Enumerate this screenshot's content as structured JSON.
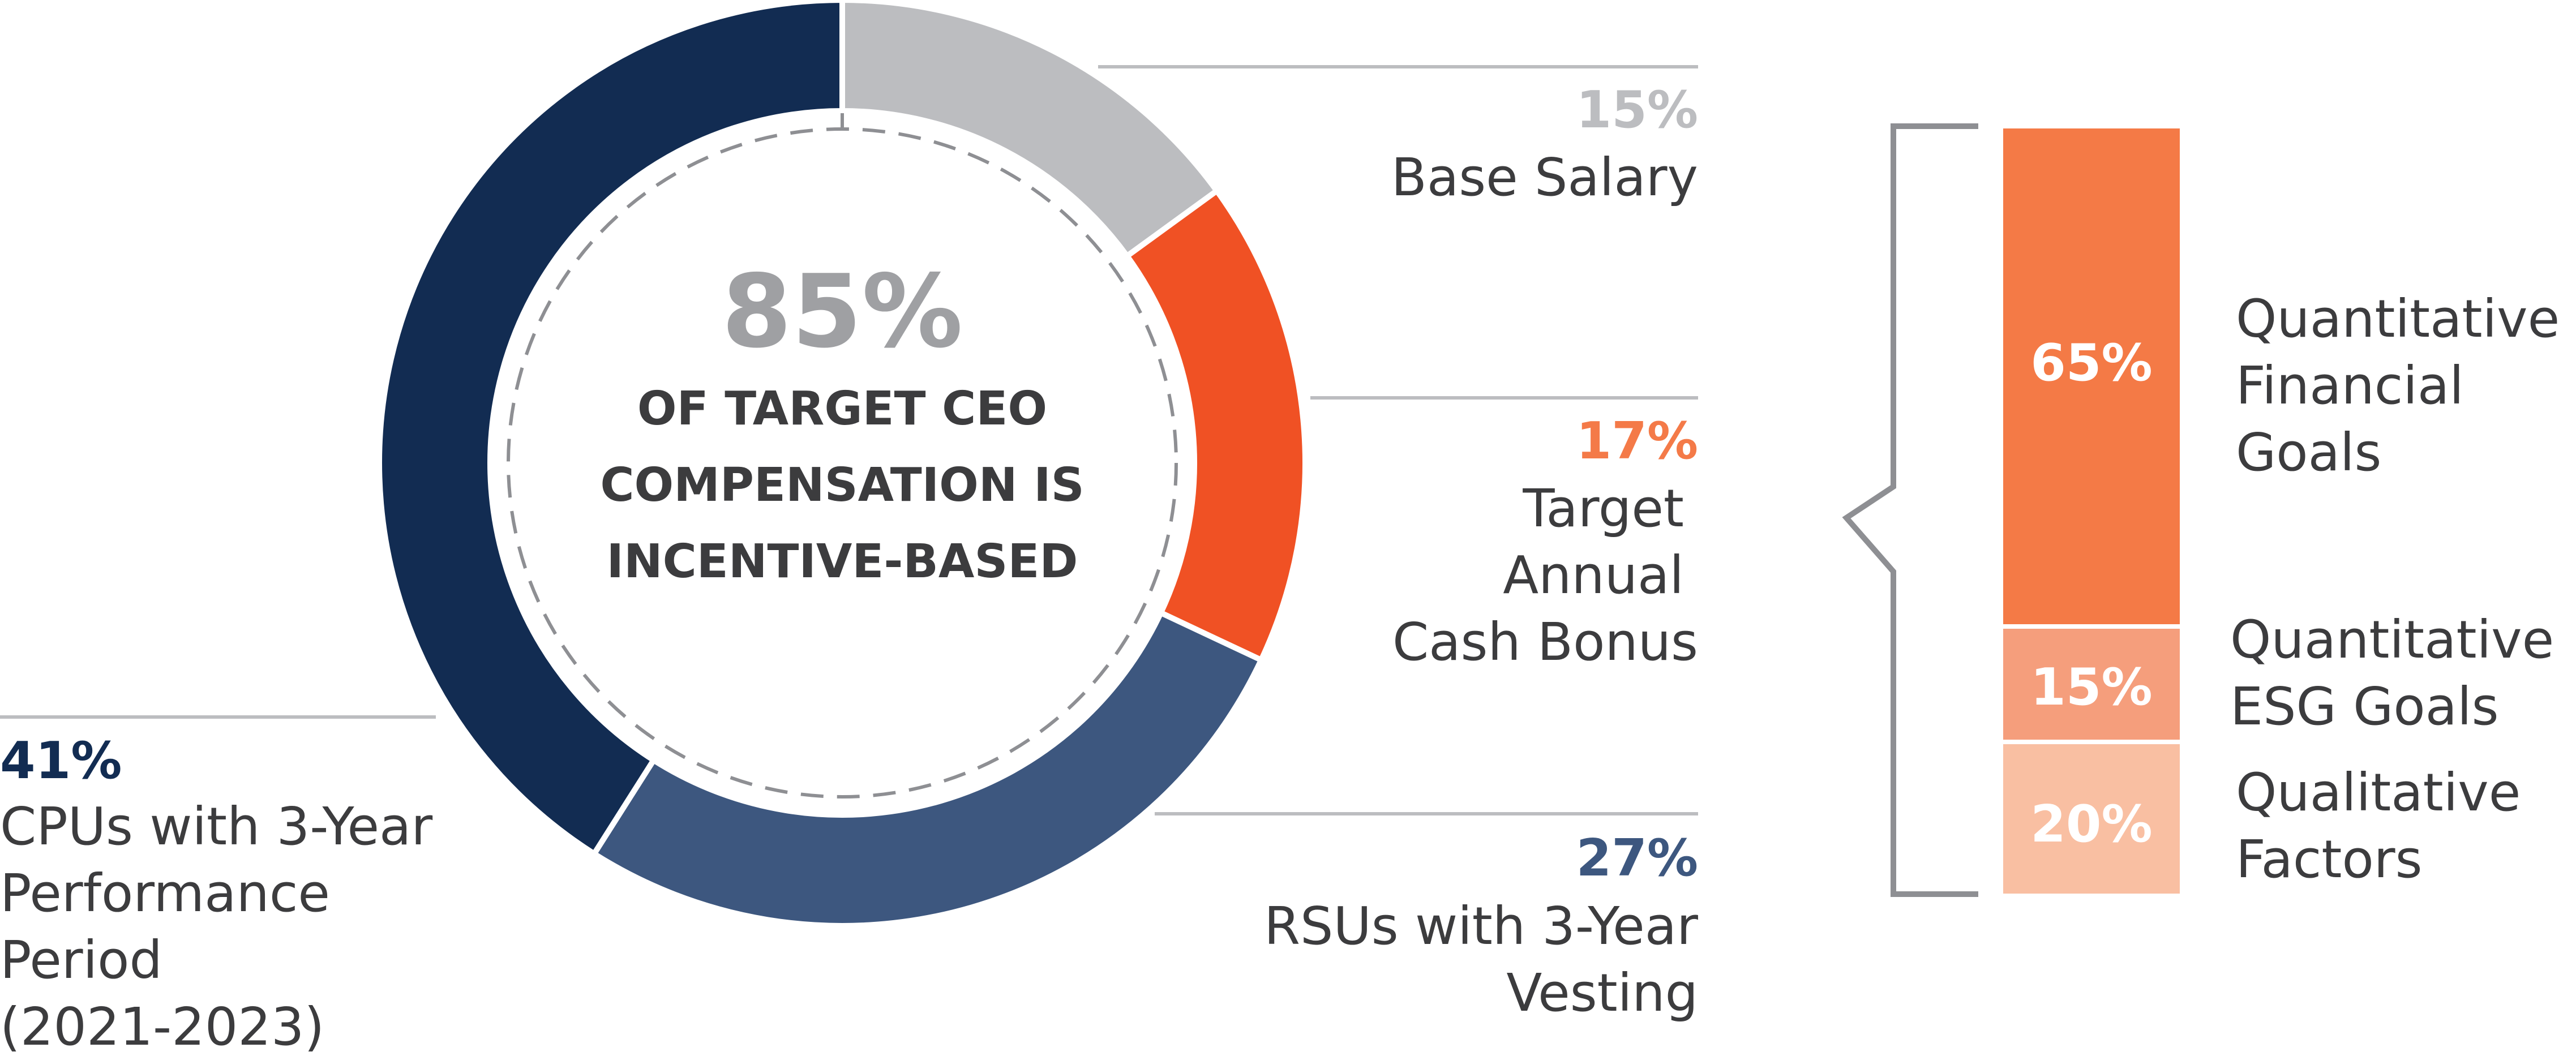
{
  "chart_data": [
    {
      "type": "pie",
      "center_value": "85%",
      "center_text": [
        "OF TARGET CEO",
        "COMPENSATION IS",
        "INCENTIVE-BASED"
      ],
      "slices": [
        {
          "key": "base-salary",
          "value": 15,
          "label": "15%",
          "name_lines": [
            "Base Salary"
          ],
          "color": "#bcbdc0"
        },
        {
          "key": "cash-bonus",
          "value": 17,
          "label": "17%",
          "name_lines": [
            "Target",
            "Annual",
            "Cash Bonus"
          ],
          "color": "#f05124",
          "label_color": "#f47a48"
        },
        {
          "key": "rsus",
          "value": 27,
          "label": "27%",
          "name_lines": [
            "RSUs with 3-Year",
            "Vesting"
          ],
          "color": "#3d577f"
        },
        {
          "key": "cpus",
          "value": 41,
          "label": "41%",
          "name_lines": [
            "CPUs with 3-Year",
            "Performance",
            "Period",
            "(2021-2023)"
          ],
          "color": "#122c52"
        }
      ]
    },
    {
      "type": "bar",
      "stacked": true,
      "segments": [
        {
          "key": "financial",
          "value": 65,
          "label": "65%",
          "name_lines": [
            "Quantitative",
            "Financial",
            "Goals"
          ],
          "color": "#f47a46"
        },
        {
          "key": "esg",
          "value": 15,
          "label": "15%",
          "name_lines": [
            "Quantitative",
            "ESG Goals"
          ],
          "color": "#f59e7c"
        },
        {
          "key": "qualitative",
          "value": 20,
          "label": "20%",
          "name_lines": [
            "Qualitative",
            "Factors"
          ],
          "color": "#f9bfa2"
        }
      ]
    }
  ],
  "colors": {
    "center_value": "#9fa0a3",
    "text": "#3c3c3e",
    "leader": "#bcbdc0",
    "bracket": "#8e8f93",
    "dashed": "#8e8f93"
  }
}
